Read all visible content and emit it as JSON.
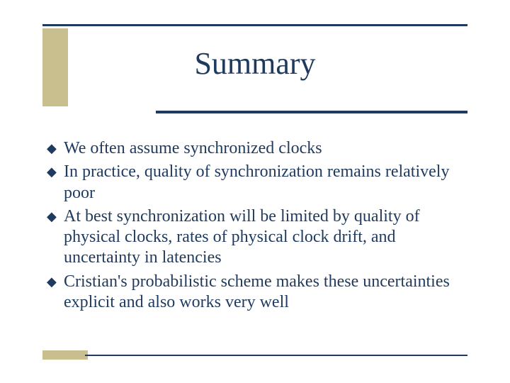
{
  "colors": {
    "text": "#1f3a5f",
    "rule": "#1f3a5f",
    "accent": "#c9be8d",
    "background": "#ffffff"
  },
  "title": "Summary",
  "title_fontsize": 44,
  "body_fontsize": 24,
  "bullet_glyph": "◆",
  "bullets": [
    "We often assume synchronized clocks",
    "In practice, quality of synchronization remains relatively poor",
    "At best synchronization will be limited by quality of physical clocks, rates of physical clock drift, and uncertainty in latencies",
    "Cristian's probabilistic scheme makes these uncertainties explicit and also works very well"
  ]
}
